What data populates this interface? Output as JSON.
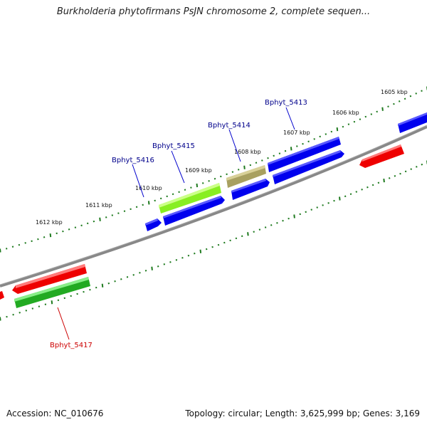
{
  "title": "Burkholderia phytofirmans PsJN chromosome 2, complete sequen...",
  "footer": {
    "accession": "Accession: NC_010676",
    "summary": "Topology: circular; Length: 3,625,999 bp; Genes: 3,169"
  },
  "colors": {
    "backbone": "#888888",
    "tick": "#1e7a1e",
    "blue": "#0000ee",
    "red": "#ee0000",
    "green": "#33bb33",
    "lime": "#99ff33",
    "olive": "#b8b070",
    "label_blue": "#00008b",
    "label_red": "#cc0000"
  },
  "tick_labels": [
    "1605 kbp",
    "1606 kbp",
    "1607 kbp",
    "1608 kbp",
    "1609 kbp",
    "1610 kbp",
    "1611 kbp",
    "1612 kbp"
  ],
  "gene_labels": [
    {
      "text": "Bphyt_5413",
      "color": "label_blue"
    },
    {
      "text": "Bphyt_5414",
      "color": "label_blue"
    },
    {
      "text": "Bphyt_5415",
      "color": "label_blue"
    },
    {
      "text": "Bphyt_5416",
      "color": "label_blue"
    },
    {
      "text": "Bphyt_5417",
      "color": "label_red"
    }
  ]
}
